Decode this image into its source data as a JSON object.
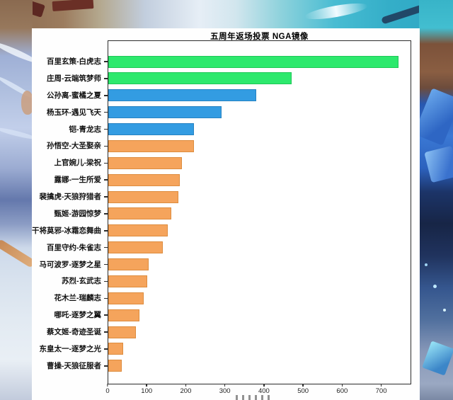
{
  "chart_data": {
    "type": "bar",
    "orientation": "horizontal",
    "title": "五周年返场投票 NGA镜像",
    "categories": [
      "百里玄策-白虎志",
      "庄周-云端筑梦师",
      "公孙离-蜜橘之夏",
      "杨玉环-遇见飞天",
      "铠-青龙志",
      "孙悟空-大圣娶亲",
      "上官婉儿-梁祝",
      "露娜-一生所爱",
      "裴擒虎-天狼狩猎者",
      "甄姬-游园惊梦",
      "干将莫邪-冰霜恋舞曲",
      "百里守约-朱雀志",
      "马可波罗-逐梦之星",
      "苏烈-玄武志",
      "花木兰-瑞麟志",
      "哪吒-逐梦之翼",
      "蔡文姬-奇迹圣诞",
      "东皇太一-逐梦之光",
      "曹操-天狼征服者"
    ],
    "values": [
      745,
      470,
      380,
      290,
      220,
      220,
      188,
      183,
      180,
      162,
      153,
      140,
      104,
      99,
      90,
      80,
      70,
      38,
      34
    ],
    "bar_colors": [
      "green",
      "green",
      "blue",
      "blue",
      "blue",
      "orange",
      "orange",
      "orange",
      "orange",
      "orange",
      "orange",
      "orange",
      "orange",
      "orange",
      "orange",
      "orange",
      "orange",
      "orange",
      "orange"
    ],
    "palette": {
      "green": "#2de96d",
      "blue": "#339ce2",
      "orange": "#f5a45c"
    },
    "palette_edges": {
      "green": "#1fc757",
      "blue": "#2783c2",
      "orange": "#dd8c3e"
    },
    "xlim": [
      0,
      775
    ],
    "x_ticks": [
      0,
      100,
      200,
      300,
      400,
      500,
      600,
      700
    ],
    "ylabel": "",
    "xlabel": "",
    "grid": false,
    "legend_position": "none"
  }
}
